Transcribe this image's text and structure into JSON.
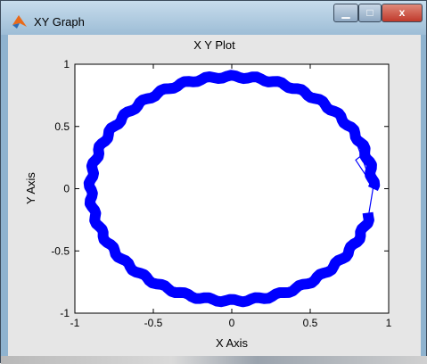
{
  "window": {
    "title": "XY Graph",
    "icon": "matlab-icon",
    "minimize": "▁",
    "maximize": "□",
    "close": "x"
  },
  "plot": {
    "title": "X Y Plot",
    "xlabel": "X Axis",
    "ylabel": "Y Axis"
  },
  "chart_data": {
    "type": "line",
    "title": "X Y Plot",
    "xlabel": "X Axis",
    "ylabel": "Y Axis",
    "xlim": [
      -1,
      1
    ],
    "ylim": [
      -1,
      1
    ],
    "xticks": [
      "-1",
      "-0.5",
      "0",
      "0.5",
      "1"
    ],
    "yticks": [
      "1",
      "0.5",
      "0",
      "-0.5",
      "-1"
    ],
    "grid": false,
    "color": "#0000ff",
    "series": [
      {
        "description": "noisy ring trajectory",
        "x": [
          0.9,
          0.85,
          0.78,
          0.64,
          0.45,
          0.23,
          0.0,
          -0.23,
          -0.45,
          -0.64,
          -0.78,
          -0.87,
          -0.9,
          -0.87,
          -0.78,
          -0.64,
          -0.45,
          -0.23,
          0.0,
          0.23,
          0.45,
          0.64,
          0.78,
          0.87,
          0.9,
          0.87,
          0.8,
          0.85,
          0.9
        ],
        "y": [
          0.0,
          0.29,
          0.45,
          0.64,
          0.78,
          0.87,
          0.9,
          0.87,
          0.78,
          0.64,
          0.45,
          0.23,
          0.0,
          -0.23,
          -0.45,
          -0.64,
          -0.78,
          -0.87,
          -0.9,
          -0.87,
          -0.78,
          -0.64,
          -0.45,
          -0.23,
          0.0,
          0.23,
          0.35,
          0.18,
          0.0
        ]
      }
    ]
  }
}
